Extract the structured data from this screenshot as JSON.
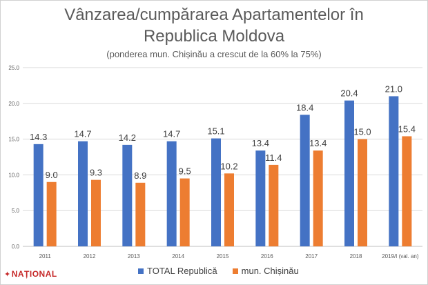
{
  "chart_data": {
    "type": "bar",
    "title_line1": "Vânzarea/cumpărarea Apartamentelor în",
    "title_line2": "Republica Moldova",
    "subtitle": "(ponderea mun. Chișinău a crescut de la 60% la 75%)",
    "categories": [
      "2011",
      "2012",
      "2013",
      "2014",
      "2015",
      "2016",
      "2017",
      "2018",
      "2019/I (val. an)"
    ],
    "series": [
      {
        "name": "TOTAL Republică",
        "color": "#4472c4",
        "values": [
          14.3,
          14.7,
          14.2,
          14.7,
          15.1,
          13.4,
          18.4,
          20.4,
          21.0
        ]
      },
      {
        "name": "mun. Chișinău",
        "color": "#ed7d31",
        "values": [
          9.0,
          9.3,
          8.9,
          9.5,
          10.2,
          11.4,
          13.4,
          15.0,
          15.4
        ]
      }
    ],
    "value_labels": [
      [
        "14.3",
        "14.7",
        "14.2",
        "14.7",
        "15.1",
        "13.4",
        "18.4",
        "20.4",
        "21.0"
      ],
      [
        "9.0",
        "9.3",
        "8.9",
        "9.5",
        "10.2",
        "11.4",
        "13.4",
        "15.0",
        "15.4"
      ]
    ],
    "ylim": [
      0,
      25
    ],
    "yticks": [
      "0.0",
      "5.0",
      "10.0",
      "15.0",
      "20.0",
      "25.0"
    ],
    "grid": true,
    "legend_position": "bottom"
  },
  "logo": {
    "text": "NAȚIONAL"
  }
}
